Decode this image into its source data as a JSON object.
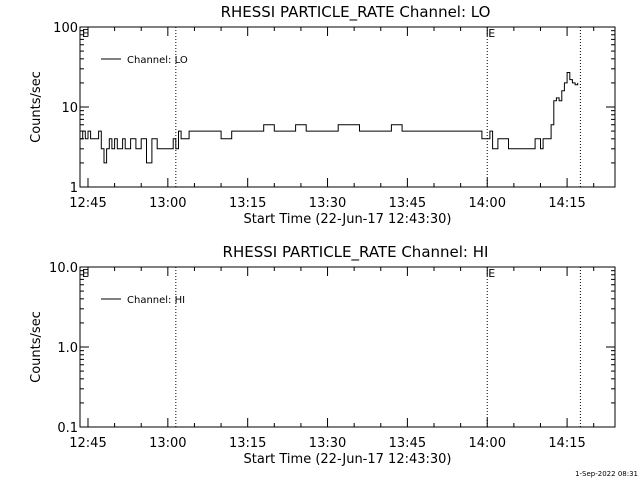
{
  "chart_data": [
    {
      "type": "line",
      "title": "RHESSI PARTICLE_RATE Channel: LO",
      "xlabel": "Start Time (22-Jun-17 12:43:30)",
      "ylabel": "Counts/sec",
      "y_scale": "log",
      "ylim": [
        1,
        100
      ],
      "y_ticks": [
        1,
        10,
        100
      ],
      "y_tick_labels": [
        "1",
        "10",
        "100"
      ],
      "xlim": [
        "12:43:30",
        "14:24:00"
      ],
      "x_ticks": [
        "12:45",
        "13:00",
        "13:15",
        "13:30",
        "13:45",
        "14:00",
        "14:15"
      ],
      "x_tick_labels": [
        "12:45",
        "13:00",
        "13:15",
        "13:30",
        "13:45",
        "14:00",
        "14:15"
      ],
      "legend_placement": "top-left",
      "vertical_markers": [
        {
          "time": "13:01:30",
          "style": "dotted",
          "label": ""
        },
        {
          "time": "14:00:00",
          "style": "dotted",
          "label": "E"
        },
        {
          "time": "14:17:30",
          "style": "dotted",
          "label": ""
        }
      ],
      "corner_label": "E",
      "series": [
        {
          "name": "Channel: LO",
          "x": [
            "12:43:30",
            "12:44:00",
            "12:44:30",
            "12:45:00",
            "12:45:30",
            "12:46:00",
            "12:46:30",
            "12:47:00",
            "12:47:30",
            "12:48:00",
            "12:48:30",
            "12:49:00",
            "12:49:30",
            "12:50:00",
            "12:50:30",
            "12:51:00",
            "12:51:30",
            "12:52:00",
            "12:53:00",
            "12:54:00",
            "12:55:00",
            "12:56:00",
            "12:57:00",
            "12:58:00",
            "12:59:00",
            "13:00:00",
            "13:01:00",
            "13:01:30",
            "13:02:00",
            "13:02:30",
            "13:04:00",
            "13:06:00",
            "13:08:00",
            "13:10:00",
            "13:12:00",
            "13:14:00",
            "13:16:00",
            "13:18:00",
            "13:20:00",
            "13:22:00",
            "13:24:00",
            "13:26:00",
            "13:28:00",
            "13:30:00",
            "13:32:00",
            "13:34:00",
            "13:36:00",
            "13:38:00",
            "13:40:00",
            "13:42:00",
            "13:44:00",
            "13:46:00",
            "13:48:00",
            "13:50:00",
            "13:52:00",
            "13:54:00",
            "13:56:00",
            "13:58:00",
            "13:59:00",
            "14:00:00",
            "14:00:30",
            "14:01:00",
            "14:02:00",
            "14:03:00",
            "14:04:00",
            "14:06:00",
            "14:08:00",
            "14:09:00",
            "14:10:00",
            "14:10:30",
            "14:11:00",
            "14:11:30",
            "14:12:00",
            "14:12:30",
            "14:13:00",
            "14:13:30",
            "14:14:00",
            "14:14:30",
            "14:15:00",
            "14:15:30",
            "14:16:00",
            "14:16:30",
            "14:17:00"
          ],
          "y": [
            4,
            5,
            4,
            5,
            4,
            4,
            4,
            5,
            3,
            2,
            3,
            4,
            3,
            4,
            3,
            3,
            4,
            3,
            4,
            3,
            4,
            2,
            4,
            3,
            3,
            3,
            4,
            3,
            5,
            4,
            5,
            5,
            5,
            4,
            5,
            5,
            5,
            6,
            5,
            5,
            6,
            5,
            5,
            5,
            6,
            6,
            5,
            5,
            5,
            6,
            5,
            5,
            5,
            5,
            5,
            5,
            5,
            5,
            4,
            4,
            5,
            3,
            4,
            4,
            3,
            3,
            3,
            4,
            3,
            4,
            4,
            4,
            6,
            12,
            13,
            12,
            16,
            20,
            27,
            22,
            20,
            19,
            20
          ]
        }
      ]
    },
    {
      "type": "line",
      "title": "RHESSI PARTICLE_RATE Channel: HI",
      "xlabel": "Start Time (22-Jun-17 12:43:30)",
      "ylabel": "Counts/sec",
      "y_scale": "log",
      "ylim": [
        0.1,
        10
      ],
      "y_ticks": [
        0.1,
        1,
        10
      ],
      "y_tick_labels": [
        "0.1",
        "1.0",
        "10.0"
      ],
      "xlim": [
        "12:43:30",
        "14:24:00"
      ],
      "x_ticks": [
        "12:45",
        "13:00",
        "13:15",
        "13:30",
        "13:45",
        "14:00",
        "14:15"
      ],
      "x_tick_labels": [
        "12:45",
        "13:00",
        "13:15",
        "13:30",
        "13:45",
        "14:00",
        "14:15"
      ],
      "legend_placement": "top-left",
      "vertical_markers": [
        {
          "time": "13:01:30",
          "style": "dotted",
          "label": ""
        },
        {
          "time": "14:00:00",
          "style": "dotted",
          "label": "E"
        },
        {
          "time": "14:17:30",
          "style": "dotted",
          "label": ""
        }
      ],
      "corner_label": "E",
      "series": [
        {
          "name": "Channel: HI",
          "x": [],
          "y": []
        }
      ]
    }
  ],
  "footer": {
    "timestamp": "1-Sep-2022 08:31"
  }
}
